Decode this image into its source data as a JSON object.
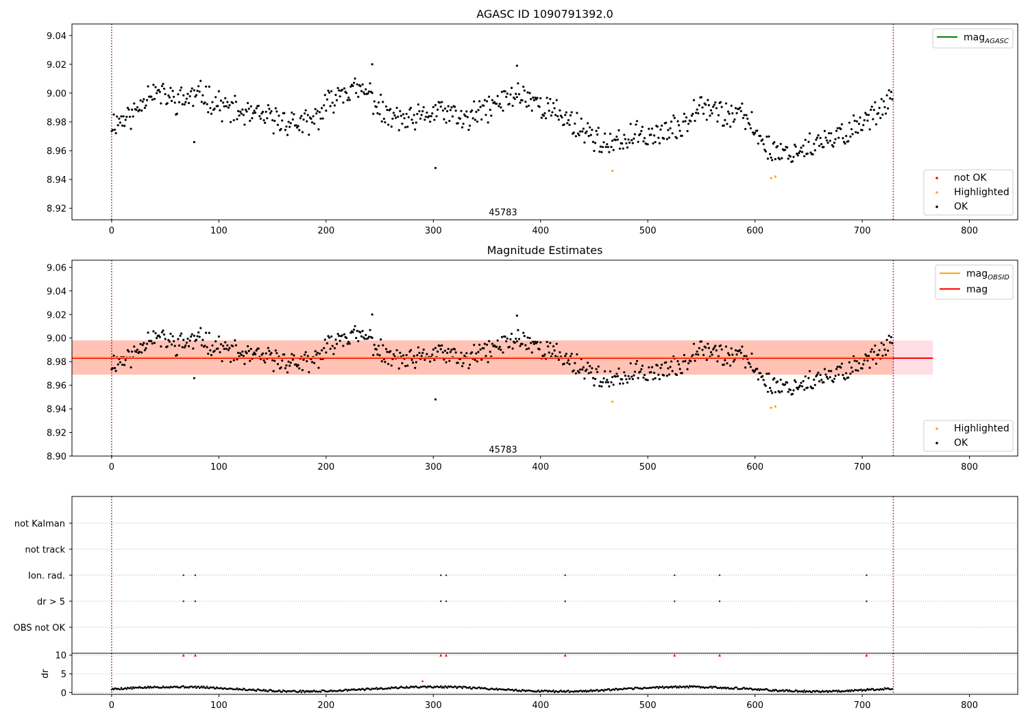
{
  "chart_data": [
    {
      "id": "p1",
      "type": "scatter",
      "title": "AGASC ID 1090791392.0",
      "xlim": [
        -37,
        845
      ],
      "ylim": [
        8.912,
        9.048
      ],
      "xticks": [
        0,
        100,
        200,
        300,
        400,
        500,
        600,
        700,
        800
      ],
      "yticks": [
        8.92,
        8.94,
        8.96,
        8.98,
        9.0,
        9.02,
        9.04
      ],
      "vlines": [
        0,
        729
      ],
      "annotation": {
        "text": "45783",
        "x": 365,
        "y": 8.915
      },
      "legend_lines": [
        {
          "label": "mag",
          "sub": "AGASC",
          "color": "#008000"
        }
      ],
      "legend_markers": [
        {
          "label": "not OK",
          "color": "#ff0000"
        },
        {
          "label": "Highlighted",
          "color": "#ffa500"
        },
        {
          "label": "OK",
          "color": "#000000"
        }
      ],
      "anchors": [
        [
          0,
          8.979
        ],
        [
          20,
          8.985
        ],
        [
          35,
          9.002
        ],
        [
          60,
          8.995
        ],
        [
          85,
          8.999
        ],
        [
          105,
          8.99
        ],
        [
          125,
          8.985
        ],
        [
          150,
          8.982
        ],
        [
          185,
          8.978
        ],
        [
          215,
          9.003
        ],
        [
          240,
          9.0
        ],
        [
          255,
          8.984
        ],
        [
          280,
          8.98
        ],
        [
          305,
          8.988
        ],
        [
          330,
          8.981
        ],
        [
          355,
          8.991
        ],
        [
          380,
          9.0
        ],
        [
          410,
          8.988
        ],
        [
          440,
          8.975
        ],
        [
          465,
          8.962
        ],
        [
          485,
          8.97
        ],
        [
          510,
          8.972
        ],
        [
          530,
          8.975
        ],
        [
          548,
          8.995
        ],
        [
          570,
          8.985
        ],
        [
          590,
          8.984
        ],
        [
          612,
          8.962
        ],
        [
          630,
          8.958
        ],
        [
          650,
          8.963
        ],
        [
          670,
          8.966
        ],
        [
          690,
          8.975
        ],
        [
          710,
          8.985
        ],
        [
          729,
          9.0
        ]
      ],
      "highlighted": [
        [
          467,
          8.946
        ],
        [
          615,
          8.941
        ],
        [
          619,
          8.942
        ]
      ],
      "outliers": [
        [
          77,
          8.966
        ],
        [
          302,
          8.948
        ],
        [
          378,
          9.019
        ],
        [
          243,
          9.02
        ]
      ],
      "n": 729,
      "jitter": 0.008,
      "seed": 11
    },
    {
      "id": "p2",
      "type": "scatter",
      "title": "Magnitude Estimates",
      "xlim": [
        -37,
        845
      ],
      "ylim": [
        8.9,
        9.066
      ],
      "xticks": [
        0,
        100,
        200,
        300,
        400,
        500,
        600,
        700,
        800
      ],
      "yticks": [
        8.9,
        8.92,
        8.94,
        8.96,
        8.98,
        9.0,
        9.02,
        9.04,
        9.06
      ],
      "vlines": [
        0,
        729
      ],
      "mag": 8.983,
      "mag_obsid": 8.983,
      "band": [
        8.969,
        8.998
      ],
      "band_xrange": [
        -37,
        766
      ],
      "annotation": {
        "text": "45783",
        "x": 365,
        "y": 8.903
      },
      "legend_lines": [
        {
          "label": "mag",
          "sub": "OBSID",
          "color": "#ffa500"
        },
        {
          "label": "mag",
          "sub": "",
          "color": "#ff0000"
        }
      ],
      "legend_markers": [
        {
          "label": "Highlighted",
          "color": "#ffa500"
        },
        {
          "label": "OK",
          "color": "#000000"
        }
      ],
      "highlighted": [
        [
          467,
          8.946
        ],
        [
          615,
          8.941
        ],
        [
          619,
          8.942
        ]
      ],
      "outliers": [
        [
          77,
          8.966
        ],
        [
          302,
          8.948
        ],
        [
          378,
          9.019
        ],
        [
          243,
          9.02
        ]
      ],
      "n": 729,
      "jitter": 0.008,
      "seed": 11
    },
    {
      "id": "p3",
      "type": "scatter",
      "title": "",
      "xlim": [
        -37,
        845
      ],
      "flag_labels": [
        "not Kalman",
        "not track",
        "Ion. rad.",
        "dr > 5",
        "OBS not OK"
      ],
      "flag_points": {
        "Ion. rad.": [
          67,
          78,
          307,
          312,
          423,
          525,
          567,
          704
        ],
        "dr > 5": [
          67,
          78,
          307,
          312,
          423,
          525,
          567,
          704
        ]
      },
      "vlines": [
        0,
        729
      ]
    },
    {
      "id": "p4",
      "type": "scatter",
      "title": "",
      "ylabel": "dr",
      "xlim": [
        -37,
        845
      ],
      "ylim": [
        -0.5,
        10.5
      ],
      "xticks": [
        0,
        100,
        200,
        300,
        400,
        500,
        600,
        700,
        800
      ],
      "yticks": [
        0,
        5,
        10
      ],
      "vlines": [
        0,
        729
      ],
      "clipped_markers_x": [
        67,
        78,
        307,
        312,
        423,
        525,
        567,
        704
      ],
      "extra_points": [
        [
          290,
          3.0
        ]
      ],
      "n": 729,
      "base": 0.8,
      "seed": 5
    }
  ]
}
